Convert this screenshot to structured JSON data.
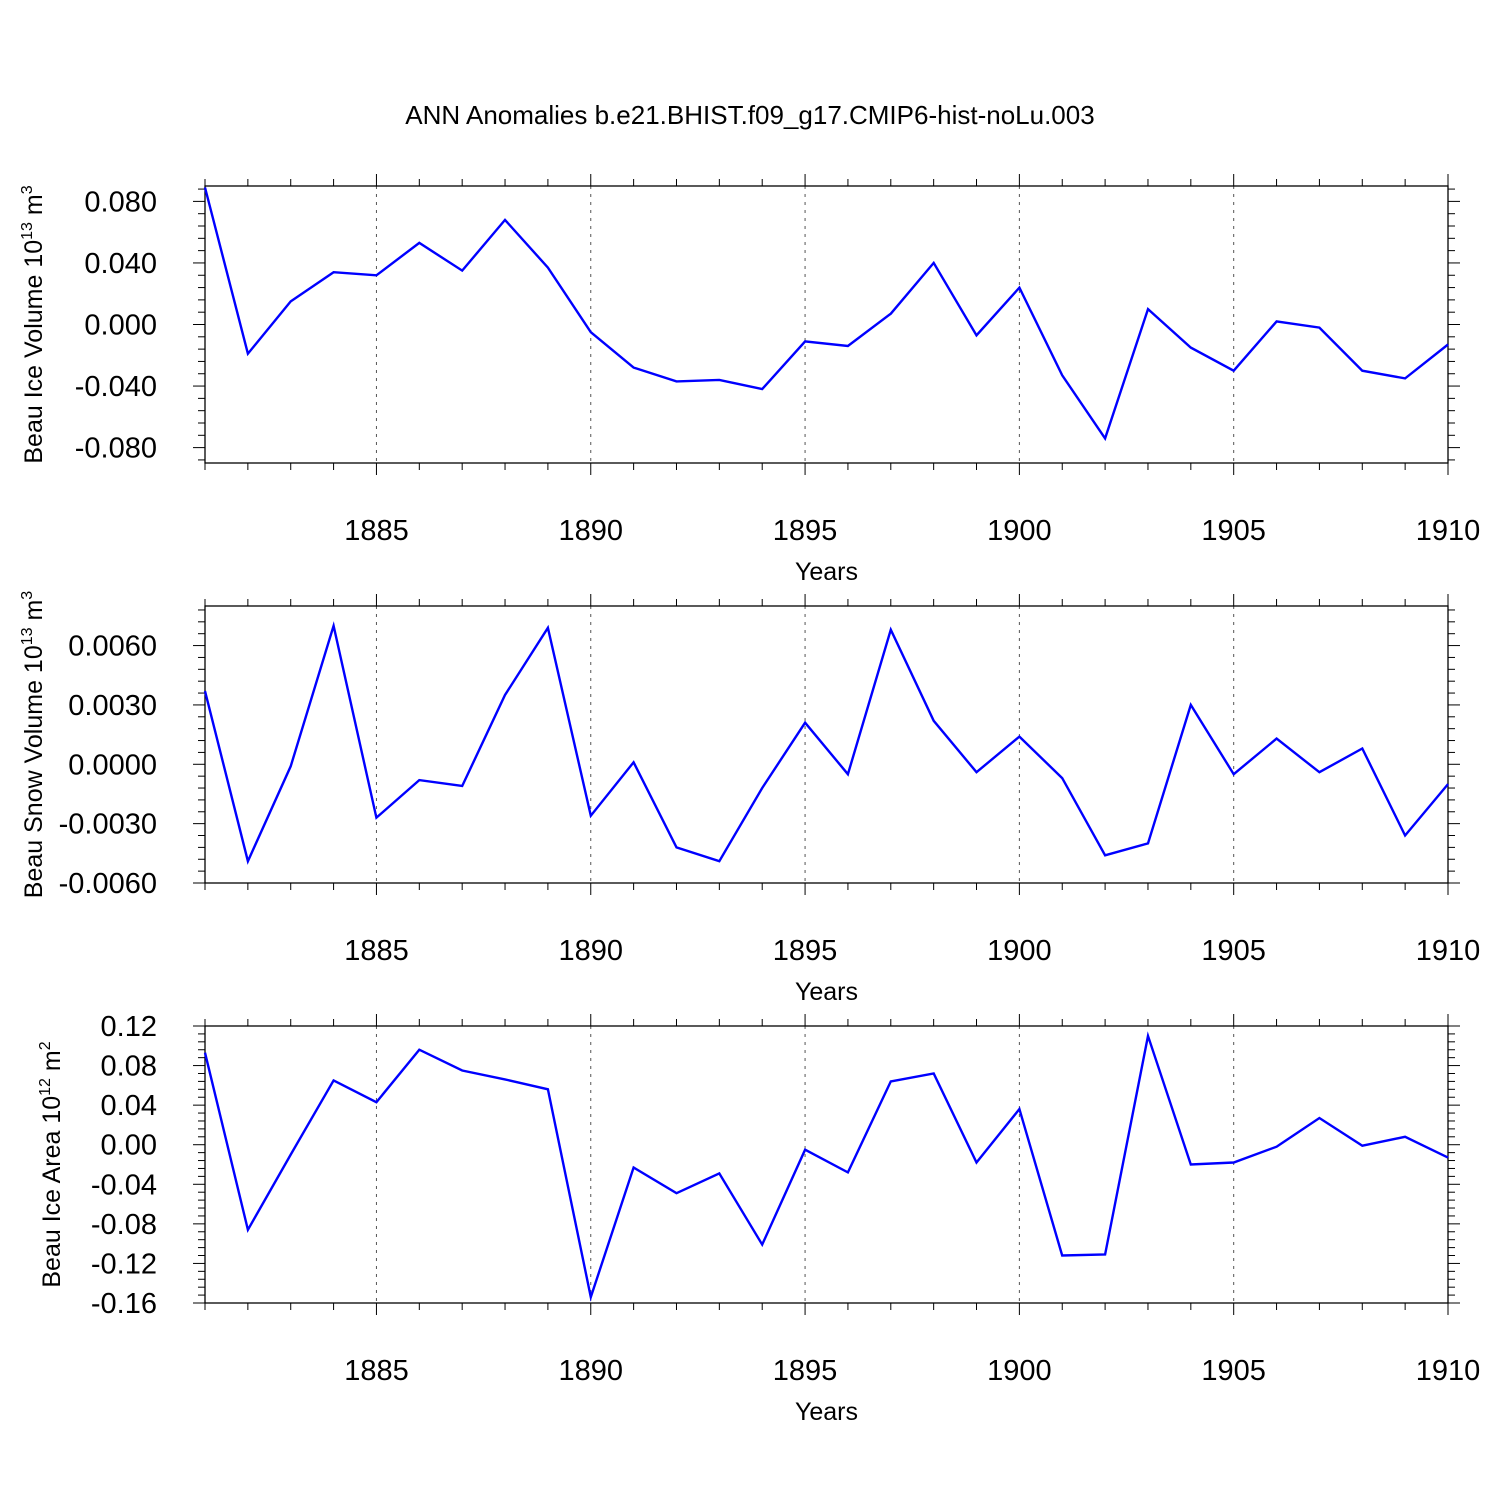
{
  "title": "ANN Anomalies b.e21.BHIST.f09_g17.CMIP6-hist-noLu.003",
  "colors": {
    "line": "#0000ff",
    "axis": "#000000",
    "grid": "#000000",
    "background": "#ffffff"
  },
  "chart_data": [
    {
      "type": "line",
      "ylabel": "Beau Ice Volume 10",
      "ylabel_exponent": "13",
      "ylabel_unit": " m",
      "ylabel_unit_exponent": "3",
      "xlabel": "Years",
      "xlim": [
        1881,
        1910
      ],
      "ylim": [
        -0.09,
        0.09
      ],
      "xticks": [
        1885,
        1890,
        1895,
        1900,
        1905,
        1910
      ],
      "xtick_labels": [
        "1885",
        "1890",
        "1895",
        "1900",
        "1905",
        "1910"
      ],
      "yticks": [
        -0.08,
        -0.04,
        0.0,
        0.04,
        0.08
      ],
      "ytick_labels": [
        "-0.080",
        "-0.040",
        "0.000",
        "0.040",
        "0.080"
      ],
      "grid": "vertical dashed at major x ticks",
      "x": [
        1881,
        1882,
        1883,
        1884,
        1885,
        1886,
        1887,
        1888,
        1889,
        1890,
        1891,
        1892,
        1893,
        1894,
        1895,
        1896,
        1897,
        1898,
        1899,
        1900,
        1901,
        1902,
        1903,
        1904,
        1905,
        1906,
        1907,
        1908,
        1909,
        1910
      ],
      "series": [
        {
          "values": [
            0.089,
            -0.019,
            0.015,
            0.034,
            0.032,
            0.053,
            0.035,
            0.068,
            0.037,
            -0.005,
            -0.028,
            -0.037,
            -0.036,
            -0.042,
            -0.011,
            -0.014,
            0.007,
            0.04,
            -0.007,
            0.024,
            -0.033,
            -0.074,
            0.01,
            -0.015,
            -0.03,
            0.002,
            -0.002,
            -0.03,
            -0.035,
            -0.013
          ]
        }
      ]
    },
    {
      "type": "line",
      "ylabel": "Beau Snow Volume 10",
      "ylabel_exponent": "13",
      "ylabel_unit": " m",
      "ylabel_unit_exponent": "3",
      "xlabel": "Years",
      "xlim": [
        1881,
        1910
      ],
      "ylim": [
        -0.006,
        0.008
      ],
      "xticks": [
        1885,
        1890,
        1895,
        1900,
        1905,
        1910
      ],
      "xtick_labels": [
        "1885",
        "1890",
        "1895",
        "1900",
        "1905",
        "1910"
      ],
      "yticks": [
        -0.006,
        -0.003,
        0.0,
        0.003,
        0.006
      ],
      "ytick_labels": [
        "-0.0060",
        "-0.0030",
        "0.0000",
        "0.0030",
        "0.0060"
      ],
      "grid": "vertical dashed at major x ticks",
      "x": [
        1881,
        1882,
        1883,
        1884,
        1885,
        1886,
        1887,
        1888,
        1889,
        1890,
        1891,
        1892,
        1893,
        1894,
        1895,
        1896,
        1897,
        1898,
        1899,
        1900,
        1901,
        1902,
        1903,
        1904,
        1905,
        1906,
        1907,
        1908,
        1909,
        1910
      ],
      "series": [
        {
          "values": [
            0.0037,
            -0.0049,
            -0.0001,
            0.007,
            -0.0027,
            -0.0008,
            -0.0011,
            0.0035,
            0.0069,
            -0.0026,
            0.0001,
            -0.0042,
            -0.0049,
            -0.0012,
            0.0021,
            -0.0005,
            0.0068,
            0.0022,
            -0.0004,
            0.0014,
            -0.0007,
            -0.0046,
            -0.004,
            0.003,
            -0.0005,
            0.0013,
            -0.0004,
            0.0008,
            -0.0036,
            -0.001
          ]
        }
      ]
    },
    {
      "type": "line",
      "ylabel": "Beau Ice Area 10",
      "ylabel_exponent": "12",
      "ylabel_unit": " m",
      "ylabel_unit_exponent": "2",
      "xlabel": "Years",
      "xlim": [
        1881,
        1910
      ],
      "ylim": [
        -0.16,
        0.12
      ],
      "xticks": [
        1885,
        1890,
        1895,
        1900,
        1905,
        1910
      ],
      "xtick_labels": [
        "1885",
        "1890",
        "1895",
        "1900",
        "1905",
        "1910"
      ],
      "yticks": [
        -0.16,
        -0.12,
        -0.08,
        -0.04,
        0.0,
        0.04,
        0.08,
        0.12
      ],
      "ytick_labels": [
        "-0.16",
        "-0.12",
        "-0.08",
        "-0.04",
        "0.00",
        "0.04",
        "0.08",
        "0.12"
      ],
      "grid": "vertical dashed at major x ticks",
      "x": [
        1881,
        1882,
        1883,
        1884,
        1885,
        1886,
        1887,
        1888,
        1889,
        1890,
        1891,
        1892,
        1893,
        1894,
        1895,
        1896,
        1897,
        1898,
        1899,
        1900,
        1901,
        1902,
        1903,
        1904,
        1905,
        1906,
        1907,
        1908,
        1909,
        1910
      ],
      "series": [
        {
          "values": [
            0.093,
            -0.086,
            -0.01,
            0.065,
            0.043,
            0.096,
            0.075,
            0.066,
            0.056,
            -0.154,
            -0.023,
            -0.049,
            -0.029,
            -0.101,
            -0.005,
            -0.028,
            0.064,
            0.072,
            -0.018,
            0.036,
            -0.112,
            -0.111,
            0.11,
            -0.02,
            -0.018,
            -0.002,
            0.027,
            -0.001,
            0.008,
            -0.013
          ]
        }
      ]
    }
  ]
}
